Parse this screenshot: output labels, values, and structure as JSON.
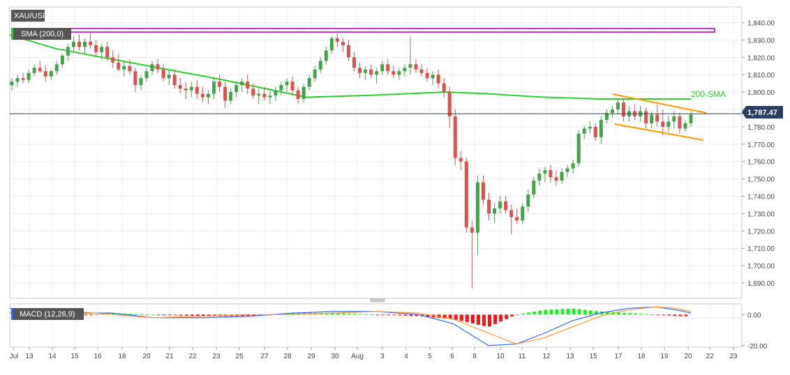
{
  "chart_data": [
    {
      "type": "candlestick",
      "symbol": "XAU/USD",
      "indicator_label": "SMA (200,0)",
      "current_price": 1787.47,
      "current_price_label": "1,787.47",
      "sma_annotation": "200-SMA",
      "ylim": [
        1686,
        1843
      ],
      "y_ticks": [
        1840,
        1830,
        1820,
        1810,
        1800,
        1790,
        1780,
        1770,
        1760,
        1750,
        1740,
        1730,
        1720,
        1710,
        1700,
        1690
      ],
      "y_tick_labels": [
        "1,840.00",
        "1,830.00",
        "1,820.00",
        "1,810.00",
        "1,800.00",
        "1,790.00",
        "1,780.00",
        "1,770.00",
        "1,760.00",
        "1,750.00",
        "1,740.00",
        "1,730.00",
        "1,720.00",
        "1,710.00",
        "1,700.00",
        "1,690.00"
      ],
      "x_tick_labels": [
        "Jul",
        "13",
        "14",
        "15",
        "16",
        "18",
        "20",
        "21",
        "22",
        "23",
        "25",
        "27",
        "28",
        "29",
        "30",
        "Aug",
        "3",
        "4",
        "5",
        "6",
        "8",
        "10",
        "11",
        "12",
        "13",
        "15",
        "17",
        "18",
        "19",
        "20",
        "22",
        "23"
      ],
      "sma200_values": [
        1833,
        1825,
        1819,
        1813,
        1807,
        1802,
        1797,
        1798,
        1799,
        1800,
        1799,
        1797,
        1796,
        1796,
        1796
      ],
      "ohlc": [
        [
          1804,
          1808,
          1801,
          1806
        ],
        [
          1806,
          1810,
          1803,
          1808
        ],
        [
          1808,
          1811,
          1805,
          1807
        ],
        [
          1807,
          1813,
          1805,
          1811
        ],
        [
          1811,
          1816,
          1809,
          1814
        ],
        [
          1814,
          1818,
          1811,
          1812
        ],
        [
          1812,
          1815,
          1806,
          1809
        ],
        [
          1809,
          1813,
          1807,
          1812
        ],
        [
          1812,
          1818,
          1810,
          1816
        ],
        [
          1816,
          1822,
          1814,
          1821
        ],
        [
          1821,
          1828,
          1818,
          1826
        ],
        [
          1826,
          1832,
          1823,
          1829
        ],
        [
          1829,
          1833,
          1824,
          1826
        ],
        [
          1826,
          1831,
          1822,
          1829
        ],
        [
          1829,
          1834,
          1825,
          1827
        ],
        [
          1827,
          1830,
          1820,
          1823
        ],
        [
          1823,
          1828,
          1819,
          1826
        ],
        [
          1826,
          1829,
          1818,
          1820
        ],
        [
          1820,
          1824,
          1814,
          1817
        ],
        [
          1817,
          1822,
          1812,
          1813
        ],
        [
          1813,
          1818,
          1809,
          1815
        ],
        [
          1815,
          1819,
          1810,
          1812
        ],
        [
          1812,
          1814,
          1800,
          1804
        ],
        [
          1804,
          1810,
          1801,
          1808
        ],
        [
          1808,
          1814,
          1806,
          1812
        ],
        [
          1812,
          1818,
          1810,
          1816
        ],
        [
          1816,
          1819,
          1811,
          1813
        ],
        [
          1813,
          1816,
          1806,
          1808
        ],
        [
          1808,
          1813,
          1804,
          1810
        ],
        [
          1810,
          1813,
          1802,
          1804
        ],
        [
          1804,
          1808,
          1799,
          1802
        ],
        [
          1802,
          1806,
          1796,
          1801
        ],
        [
          1801,
          1806,
          1797,
          1803
        ],
        [
          1803,
          1807,
          1796,
          1799
        ],
        [
          1799,
          1803,
          1794,
          1797
        ],
        [
          1797,
          1801,
          1793,
          1799
        ],
        [
          1799,
          1808,
          1796,
          1806
        ],
        [
          1806,
          1810,
          1800,
          1803
        ],
        [
          1803,
          1806,
          1791,
          1795
        ],
        [
          1795,
          1802,
          1793,
          1800
        ],
        [
          1800,
          1806,
          1797,
          1804
        ],
        [
          1804,
          1808,
          1800,
          1806
        ],
        [
          1806,
          1810,
          1799,
          1802
        ],
        [
          1802,
          1805,
          1796,
          1798
        ],
        [
          1798,
          1802,
          1793,
          1799
        ],
        [
          1799,
          1803,
          1795,
          1797
        ],
        [
          1797,
          1801,
          1793,
          1798
        ],
        [
          1798,
          1803,
          1795,
          1801
        ],
        [
          1801,
          1806,
          1798,
          1804
        ],
        [
          1804,
          1808,
          1800,
          1806
        ],
        [
          1806,
          1809,
          1798,
          1801
        ],
        [
          1801,
          1803,
          1793,
          1796
        ],
        [
          1796,
          1805,
          1794,
          1803
        ],
        [
          1803,
          1810,
          1801,
          1808
        ],
        [
          1808,
          1815,
          1806,
          1813
        ],
        [
          1813,
          1820,
          1811,
          1818
        ],
        [
          1818,
          1826,
          1816,
          1824
        ],
        [
          1824,
          1832,
          1822,
          1831
        ],
        [
          1831,
          1834,
          1826,
          1829
        ],
        [
          1829,
          1831,
          1823,
          1827
        ],
        [
          1827,
          1830,
          1818,
          1820
        ],
        [
          1820,
          1823,
          1812,
          1814
        ],
        [
          1814,
          1817,
          1808,
          1811
        ],
        [
          1811,
          1815,
          1807,
          1813
        ],
        [
          1813,
          1816,
          1808,
          1810
        ],
        [
          1810,
          1814,
          1805,
          1812
        ],
        [
          1812,
          1818,
          1810,
          1816
        ],
        [
          1816,
          1819,
          1810,
          1812
        ],
        [
          1812,
          1815,
          1808,
          1810
        ],
        [
          1810,
          1814,
          1807,
          1812
        ],
        [
          1812,
          1816,
          1809,
          1814
        ],
        [
          1814,
          1832,
          1810,
          1816
        ],
        [
          1816,
          1819,
          1811,
          1813
        ],
        [
          1813,
          1816,
          1809,
          1811
        ],
        [
          1811,
          1814,
          1806,
          1808
        ],
        [
          1808,
          1812,
          1804,
          1810
        ],
        [
          1810,
          1813,
          1802,
          1805
        ],
        [
          1805,
          1808,
          1797,
          1800
        ],
        [
          1800,
          1803,
          1779,
          1786
        ],
        [
          1786,
          1790,
          1758,
          1762
        ],
        [
          1762,
          1766,
          1755,
          1760
        ],
        [
          1760,
          1762,
          1719,
          1722
        ],
        [
          1722,
          1726,
          1687,
          1719
        ],
        [
          1719,
          1752,
          1706,
          1748
        ],
        [
          1748,
          1752,
          1735,
          1738
        ],
        [
          1738,
          1742,
          1726,
          1730
        ],
        [
          1730,
          1736,
          1725,
          1733
        ],
        [
          1733,
          1740,
          1730,
          1737
        ],
        [
          1737,
          1740,
          1730,
          1732
        ],
        [
          1732,
          1735,
          1718,
          1728
        ],
        [
          1728,
          1733,
          1724,
          1726
        ],
        [
          1726,
          1736,
          1724,
          1734
        ],
        [
          1734,
          1744,
          1731,
          1741
        ],
        [
          1741,
          1751,
          1739,
          1749
        ],
        [
          1749,
          1756,
          1746,
          1753
        ],
        [
          1753,
          1757,
          1748,
          1755
        ],
        [
          1755,
          1758,
          1748,
          1751
        ],
        [
          1751,
          1755,
          1746,
          1749
        ],
        [
          1749,
          1756,
          1747,
          1754
        ],
        [
          1754,
          1758,
          1751,
          1756
        ],
        [
          1756,
          1761,
          1753,
          1759
        ],
        [
          1759,
          1778,
          1757,
          1776
        ],
        [
          1776,
          1781,
          1773,
          1779
        ],
        [
          1779,
          1783,
          1776,
          1780
        ],
        [
          1780,
          1782,
          1772,
          1774
        ],
        [
          1774,
          1786,
          1770,
          1784
        ],
        [
          1784,
          1790,
          1782,
          1788
        ],
        [
          1788,
          1792,
          1785,
          1790
        ],
        [
          1790,
          1796,
          1787,
          1794
        ],
        [
          1794,
          1796,
          1783,
          1786
        ],
        [
          1786,
          1792,
          1783,
          1789
        ],
        [
          1789,
          1793,
          1784,
          1786
        ],
        [
          1786,
          1792,
          1783,
          1789
        ],
        [
          1789,
          1791,
          1779,
          1782
        ],
        [
          1782,
          1789,
          1779,
          1787
        ],
        [
          1787,
          1793,
          1780,
          1783
        ],
        [
          1783,
          1790,
          1775,
          1780
        ],
        [
          1780,
          1786,
          1777,
          1783
        ],
        [
          1783,
          1789,
          1779,
          1786
        ],
        [
          1786,
          1788,
          1776,
          1779
        ],
        [
          1779,
          1784,
          1777,
          1782
        ],
        [
          1782,
          1789,
          1780,
          1787
        ]
      ],
      "up_color": "#43a24a",
      "down_color": "#d9534f",
      "sma_color": "#2ecc30",
      "channel_color": "#ff9900",
      "zone_color": "#cc33cc",
      "price_line_color": "#2c3e60"
    },
    {
      "type": "histogram",
      "indicator_label": "MACD (12,26,9)",
      "ylim": [
        -21,
        6
      ],
      "y_ticks": [
        0,
        -20
      ],
      "y_tick_labels": [
        "0.00",
        "-20.00"
      ],
      "macd_line_values": [
        4,
        3,
        1,
        1,
        -2,
        -2,
        -1,
        1,
        2,
        2,
        0,
        -6,
        -20,
        -19,
        -12,
        -4,
        1,
        4,
        5,
        3,
        1
      ],
      "signal_line_values": [
        1,
        4,
        2,
        0,
        -2,
        -1,
        0,
        0,
        1,
        2,
        1,
        -3,
        -12,
        -19,
        -15,
        -8,
        -1,
        3,
        5,
        4,
        2
      ],
      "macd_color": "#3366ff",
      "signal_color": "#ff9933",
      "histogram_positive_color": "#22ee22",
      "histogram_negative_color": "#ff1111"
    }
  ]
}
